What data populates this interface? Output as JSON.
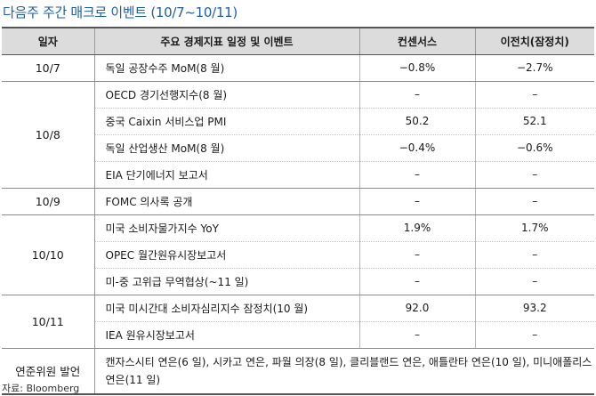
{
  "title": "다음주 주간 매크로 이벤트 (10/7~10/11)",
  "headers": [
    "일자",
    "주요 경제지표 일정 및 이벤트",
    "컨센서스",
    "이전치(잠정치)"
  ],
  "groups": [
    {
      "date": "10/7",
      "rows": [
        {
          "event": "독일 공장수주 MoM(8 월)",
          "consensus": "−0.8%",
          "previous": "−2.7%"
        }
      ]
    },
    {
      "date": "10/8",
      "rows": [
        {
          "event": "OECD 경기선행지수(8 월)",
          "consensus": "–",
          "previous": "–"
        },
        {
          "event": "중국 Caixin 서비스업 PMI",
          "consensus": "50.2",
          "previous": "52.1"
        },
        {
          "event": "독일 산업생산 MoM(8 월)",
          "consensus": "−0.4%",
          "previous": "−0.6%"
        },
        {
          "event": "EIA 단기에너지 보고서",
          "consensus": "–",
          "previous": "–"
        }
      ]
    },
    {
      "date": "10/9",
      "rows": [
        {
          "event": "FOMC 의사록 공개",
          "consensus": "–",
          "previous": "–"
        }
      ]
    },
    {
      "date": "10/10",
      "rows": [
        {
          "event": "미국 소비자물가지수 YoY",
          "consensus": "1.9%",
          "previous": "1.7%"
        },
        {
          "event": "OPEC 월간원유시장보고서",
          "consensus": "–",
          "previous": "–"
        },
        {
          "event": "미-중 고위급 무역협상(~11 일)",
          "consensus": "–",
          "previous": "–"
        }
      ]
    },
    {
      "date": "10/11",
      "rows": [
        {
          "event": "미국 미시간대 소비자심리지수 잠정치(10 월)",
          "consensus": "92.0",
          "previous": "93.2"
        },
        {
          "event": "IEA 원유시장보고서",
          "consensus": "–",
          "previous": "–"
        }
      ]
    }
  ],
  "speakers": {
    "label": "연준위원 발언",
    "text": "캔자스시티 연은(6 일), 시카고 연은, 파월 의장(8 일), 클리블랜드 연은, 애틀란타 연은(10 일), 미니애폴리스 연은(11 일)"
  },
  "source": "자료: Bloomberg"
}
